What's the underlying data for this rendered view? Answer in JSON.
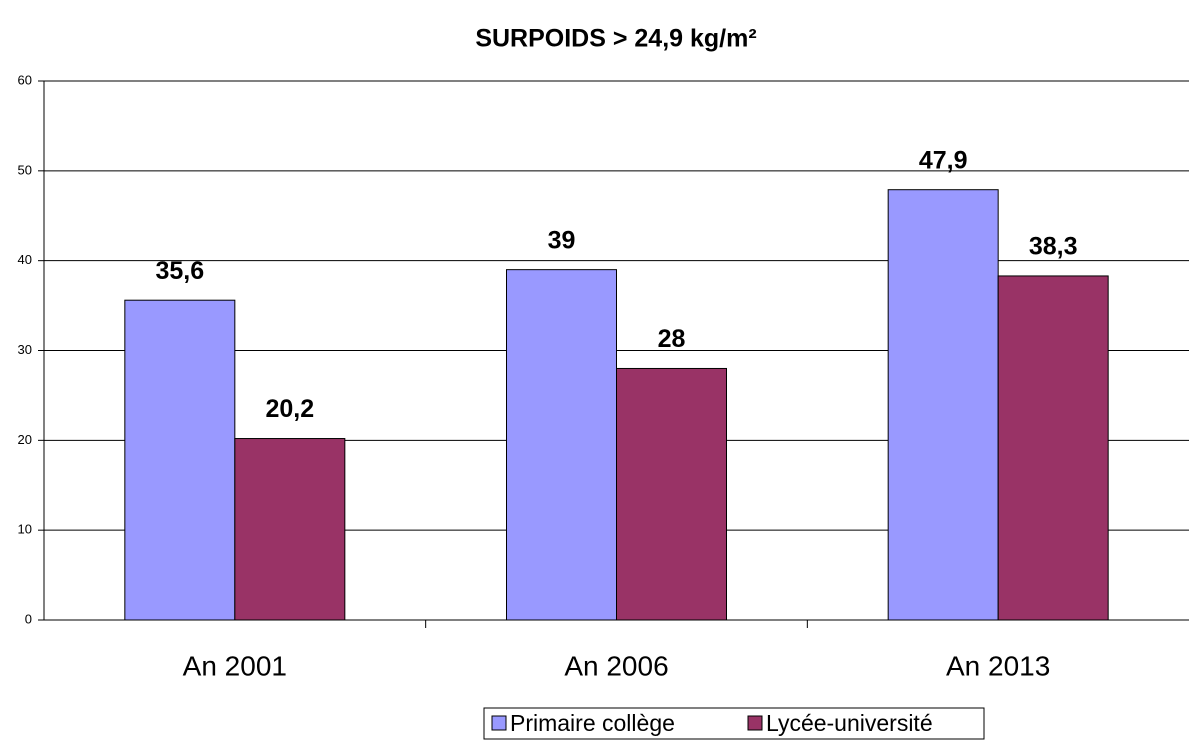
{
  "chart_data": {
    "type": "bar",
    "title": "SURPOIDS > 24,9 kg/m²",
    "categories": [
      "An 2001",
      "An 2006",
      "An 2013"
    ],
    "series": [
      {
        "name": "Primaire collège",
        "color": "#9999ff",
        "values": [
          35.6,
          39,
          47.9
        ],
        "value_labels": [
          "35,6",
          "39",
          "47,9"
        ]
      },
      {
        "name": "Lycée-université",
        "color": "#993366",
        "values": [
          20.2,
          28,
          38.3
        ],
        "value_labels": [
          "20,2",
          "28",
          "38,3"
        ]
      }
    ],
    "ylim": [
      0,
      60
    ],
    "yticks": [
      0,
      10,
      20,
      30,
      40,
      50,
      60
    ],
    "grid": true,
    "legend": "bottom"
  }
}
